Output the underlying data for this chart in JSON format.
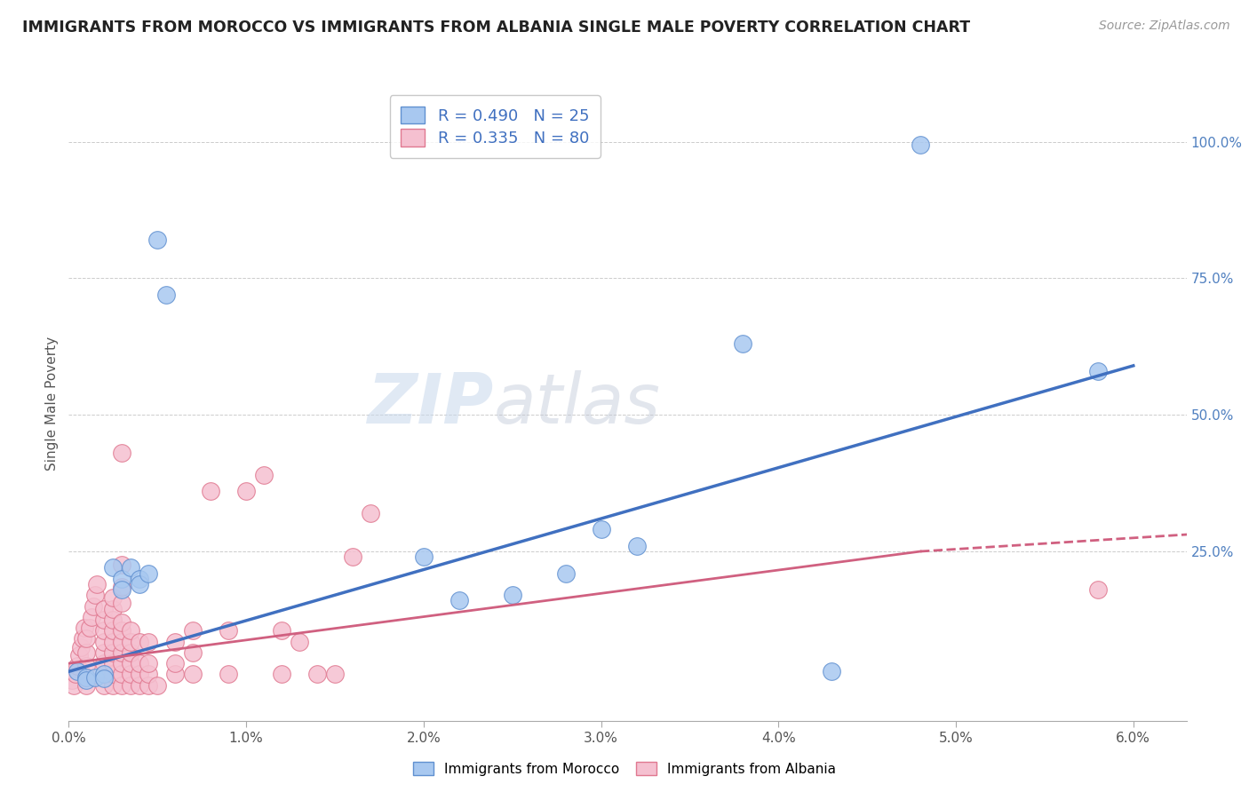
{
  "title": "IMMIGRANTS FROM MOROCCO VS IMMIGRANTS FROM ALBANIA SINGLE MALE POVERTY CORRELATION CHART",
  "source": "Source: ZipAtlas.com",
  "ylabel": "Single Male Poverty",
  "morocco_color": "#a8c8f0",
  "albania_color": "#f5c0d0",
  "morocco_edge_color": "#6090d0",
  "albania_edge_color": "#e07890",
  "morocco_line_color": "#4070c0",
  "albania_line_color": "#d06080",
  "R_morocco": 0.49,
  "N_morocco": 25,
  "R_albania": 0.335,
  "N_albania": 80,
  "morocco_points": [
    [
      0.0005,
      0.03
    ],
    [
      0.001,
      0.02
    ],
    [
      0.001,
      0.015
    ],
    [
      0.0015,
      0.02
    ],
    [
      0.002,
      0.025
    ],
    [
      0.002,
      0.018
    ],
    [
      0.0025,
      0.22
    ],
    [
      0.003,
      0.2
    ],
    [
      0.003,
      0.18
    ],
    [
      0.0035,
      0.22
    ],
    [
      0.004,
      0.2
    ],
    [
      0.004,
      0.19
    ],
    [
      0.0045,
      0.21
    ],
    [
      0.005,
      0.82
    ],
    [
      0.0055,
      0.72
    ],
    [
      0.02,
      0.24
    ],
    [
      0.022,
      0.16
    ],
    [
      0.025,
      0.17
    ],
    [
      0.028,
      0.21
    ],
    [
      0.03,
      0.29
    ],
    [
      0.032,
      0.26
    ],
    [
      0.038,
      0.63
    ],
    [
      0.043,
      0.03
    ],
    [
      0.048,
      0.995
    ],
    [
      0.058,
      0.58
    ]
  ],
  "albania_points": [
    [
      0.0002,
      0.015
    ],
    [
      0.0003,
      0.005
    ],
    [
      0.0004,
      0.025
    ],
    [
      0.0005,
      0.04
    ],
    [
      0.0006,
      0.06
    ],
    [
      0.0007,
      0.075
    ],
    [
      0.0008,
      0.09
    ],
    [
      0.0009,
      0.11
    ],
    [
      0.001,
      0.005
    ],
    [
      0.001,
      0.02
    ],
    [
      0.001,
      0.04
    ],
    [
      0.001,
      0.065
    ],
    [
      0.001,
      0.09
    ],
    [
      0.0012,
      0.11
    ],
    [
      0.0013,
      0.13
    ],
    [
      0.0014,
      0.15
    ],
    [
      0.0015,
      0.17
    ],
    [
      0.0016,
      0.19
    ],
    [
      0.002,
      0.005
    ],
    [
      0.002,
      0.025
    ],
    [
      0.002,
      0.045
    ],
    [
      0.002,
      0.065
    ],
    [
      0.002,
      0.085
    ],
    [
      0.002,
      0.105
    ],
    [
      0.002,
      0.125
    ],
    [
      0.002,
      0.145
    ],
    [
      0.0025,
      0.005
    ],
    [
      0.0025,
      0.025
    ],
    [
      0.0025,
      0.045
    ],
    [
      0.0025,
      0.065
    ],
    [
      0.0025,
      0.085
    ],
    [
      0.0025,
      0.105
    ],
    [
      0.0025,
      0.125
    ],
    [
      0.0025,
      0.145
    ],
    [
      0.0025,
      0.165
    ],
    [
      0.003,
      0.005
    ],
    [
      0.003,
      0.025
    ],
    [
      0.003,
      0.045
    ],
    [
      0.003,
      0.065
    ],
    [
      0.003,
      0.085
    ],
    [
      0.003,
      0.105
    ],
    [
      0.003,
      0.12
    ],
    [
      0.003,
      0.155
    ],
    [
      0.003,
      0.185
    ],
    [
      0.003,
      0.225
    ],
    [
      0.003,
      0.43
    ],
    [
      0.0035,
      0.005
    ],
    [
      0.0035,
      0.025
    ],
    [
      0.0035,
      0.045
    ],
    [
      0.0035,
      0.065
    ],
    [
      0.0035,
      0.085
    ],
    [
      0.0035,
      0.105
    ],
    [
      0.004,
      0.005
    ],
    [
      0.004,
      0.025
    ],
    [
      0.004,
      0.045
    ],
    [
      0.004,
      0.085
    ],
    [
      0.0045,
      0.005
    ],
    [
      0.0045,
      0.025
    ],
    [
      0.0045,
      0.045
    ],
    [
      0.0045,
      0.085
    ],
    [
      0.005,
      0.005
    ],
    [
      0.006,
      0.025
    ],
    [
      0.006,
      0.045
    ],
    [
      0.006,
      0.085
    ],
    [
      0.007,
      0.025
    ],
    [
      0.007,
      0.065
    ],
    [
      0.007,
      0.105
    ],
    [
      0.008,
      0.36
    ],
    [
      0.009,
      0.025
    ],
    [
      0.009,
      0.105
    ],
    [
      0.01,
      0.36
    ],
    [
      0.011,
      0.39
    ],
    [
      0.012,
      0.025
    ],
    [
      0.012,
      0.105
    ],
    [
      0.013,
      0.085
    ],
    [
      0.014,
      0.025
    ],
    [
      0.015,
      0.025
    ],
    [
      0.016,
      0.24
    ],
    [
      0.017,
      0.32
    ],
    [
      0.058,
      0.18
    ]
  ],
  "morocco_trendline": [
    [
      0.0,
      0.03
    ],
    [
      0.06,
      0.59
    ]
  ],
  "albania_trendline_solid": [
    [
      0.0,
      0.045
    ],
    [
      0.048,
      0.25
    ]
  ],
  "albania_trendline_dashed": [
    [
      0.048,
      0.25
    ],
    [
      0.065,
      0.285
    ]
  ],
  "background_color": "#ffffff",
  "watermark_zip": "ZIP",
  "watermark_atlas": "atlas",
  "xlim": [
    0.0,
    0.063
  ],
  "ylim": [
    -0.06,
    1.1
  ],
  "xticks": [
    0.0,
    0.01,
    0.02,
    0.03,
    0.04,
    0.05,
    0.06
  ],
  "xticklabels": [
    "0.0%",
    "1.0%",
    "2.0%",
    "3.0%",
    "4.0%",
    "5.0%",
    "6.0%"
  ],
  "yticks": [
    0.0,
    0.25,
    0.5,
    0.75,
    1.0
  ],
  "yticklabels": [
    "",
    "25.0%",
    "50.0%",
    "75.0%",
    "100.0%"
  ],
  "grid_lines": [
    0.25,
    0.5,
    0.75,
    1.0
  ],
  "legend1_label1": "R = 0.490   N = 25",
  "legend1_label2": "R = 0.335   N = 80",
  "legend2_label1": "Immigrants from Morocco",
  "legend2_label2": "Immigrants from Albania"
}
